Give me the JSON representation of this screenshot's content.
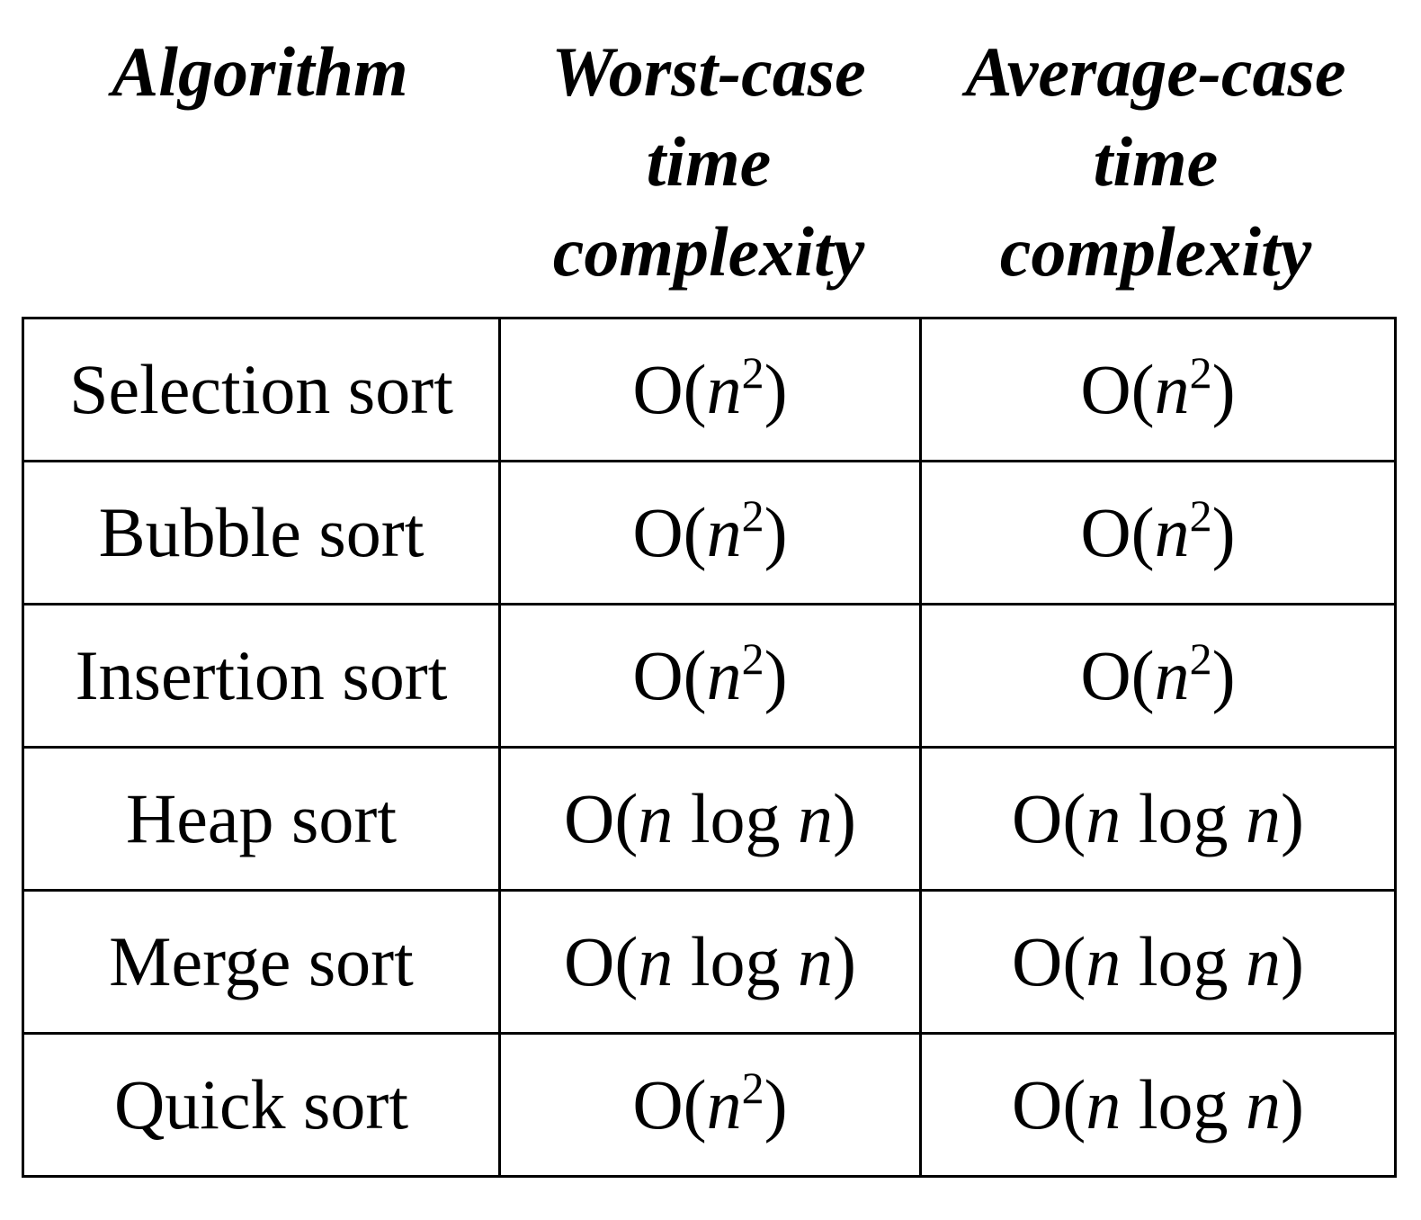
{
  "headers": [
    {
      "lines": [
        "Algorithm"
      ]
    },
    {
      "lines": [
        "Worst-case",
        "time",
        "complexity"
      ]
    },
    {
      "lines": [
        "Average-case",
        "time",
        "complexity"
      ]
    }
  ],
  "rows": [
    {
      "algorithm": "Selection sort",
      "worst": {
        "open": "O(",
        "var": "n",
        "exp": "2",
        "tail": "",
        "var2": "",
        "close": ")"
      },
      "average": {
        "open": "O(",
        "var": "n",
        "exp": "2",
        "tail": "",
        "var2": "",
        "close": ")"
      }
    },
    {
      "algorithm": "Bubble sort",
      "worst": {
        "open": "O(",
        "var": "n",
        "exp": "2",
        "tail": "",
        "var2": "",
        "close": ")"
      },
      "average": {
        "open": "O(",
        "var": "n",
        "exp": "2",
        "tail": "",
        "var2": "",
        "close": ")"
      }
    },
    {
      "algorithm": "Insertion sort",
      "worst": {
        "open": "O(",
        "var": "n",
        "exp": "2",
        "tail": "",
        "var2": "",
        "close": ")"
      },
      "average": {
        "open": "O(",
        "var": "n",
        "exp": "2",
        "tail": "",
        "var2": "",
        "close": ")"
      }
    },
    {
      "algorithm": "Heap sort",
      "worst": {
        "open": "O(",
        "var": "n",
        "exp": "",
        "tail": " log ",
        "var2": "n",
        "close": ")"
      },
      "average": {
        "open": "O(",
        "var": "n",
        "exp": "",
        "tail": " log ",
        "var2": "n",
        "close": ")"
      }
    },
    {
      "algorithm": "Merge sort",
      "worst": {
        "open": "O(",
        "var": "n",
        "exp": "",
        "tail": " log ",
        "var2": "n",
        "close": ")"
      },
      "average": {
        "open": "O(",
        "var": "n",
        "exp": "",
        "tail": " log ",
        "var2": "n",
        "close": ")"
      }
    },
    {
      "algorithm": "Quick sort",
      "worst": {
        "open": "O(",
        "var": "n",
        "exp": "2",
        "tail": "",
        "var2": "",
        "close": ")"
      },
      "average": {
        "open": "O(",
        "var": "n",
        "exp": "",
        "tail": " log ",
        "var2": "n",
        "close": ")"
      }
    }
  ]
}
